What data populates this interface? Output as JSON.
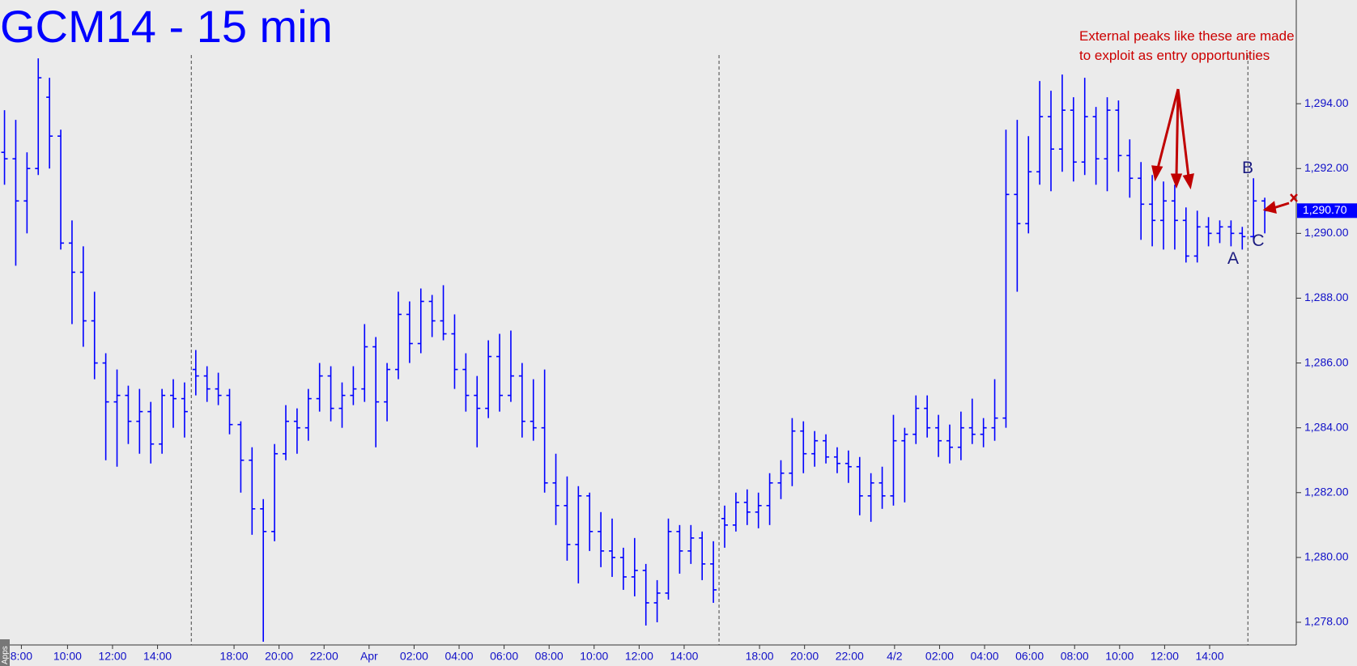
{
  "chart_data": {
    "type": "ohlc",
    "title": "GCM14 - 15 min",
    "color": "#0000ff",
    "x": [
      0,
      1,
      2,
      3,
      4,
      5,
      6,
      7,
      8,
      9,
      10,
      11,
      12,
      13,
      14,
      15,
      16,
      17,
      18,
      19,
      20,
      21,
      22,
      23,
      24,
      25,
      26,
      27,
      28,
      29,
      30,
      31,
      32,
      33,
      34,
      35,
      36,
      37,
      38,
      39,
      40,
      41,
      42,
      43,
      44,
      45,
      46,
      47,
      48,
      49,
      50,
      51,
      52,
      53,
      54,
      55,
      56,
      57,
      58,
      59,
      60,
      61,
      62,
      63,
      64,
      65,
      66,
      67,
      68,
      69,
      70,
      71,
      72,
      73,
      74,
      75,
      76,
      77,
      78,
      79,
      80,
      81,
      82,
      83,
      84,
      85,
      86,
      87,
      88,
      89,
      90,
      91,
      92,
      93,
      94,
      95,
      96,
      97,
      98,
      99,
      100,
      101,
      102,
      103,
      104,
      105,
      106,
      107,
      108,
      109,
      110,
      111,
      112
    ],
    "open": [
      1292.5,
      1292.3,
      1291.0,
      1292.0,
      1294.2,
      1293.0,
      1289.7,
      1288.8,
      1287.3,
      1286.0,
      1284.8,
      1285.0,
      1284.2,
      1284.5,
      1283.5,
      1285.0,
      1284.9,
      1285.8,
      1285.6,
      1285.2,
      1285.0,
      1284.1,
      1283.0,
      1281.5,
      1280.8,
      1283.2,
      1284.2,
      1284.0,
      1284.9,
      1285.6,
      1284.6,
      1285.0,
      1285.2,
      1286.5,
      1284.8,
      1285.8,
      1287.5,
      1286.6,
      1287.9,
      1287.3,
      1286.9,
      1285.8,
      1285.0,
      1284.6,
      1286.2,
      1285.0,
      1285.6,
      1284.2,
      1284.0,
      1282.3,
      1281.6,
      1280.4,
      1281.9,
      1280.8,
      1280.2,
      1280.0,
      1279.4,
      1279.6,
      1278.6,
      1278.9,
      1280.8,
      1280.2,
      1280.6,
      1279.8,
      1281.2,
      1281.0,
      1281.7,
      1281.4,
      1281.6,
      1282.3,
      1282.6,
      1283.9,
      1283.2,
      1283.6,
      1283.1,
      1282.9,
      1282.8,
      1281.9,
      1282.3,
      1281.9,
      1283.6,
      1283.8,
      1284.6,
      1284.0,
      1283.6,
      1283.4,
      1284.0,
      1283.8,
      1284.0,
      1284.3,
      1291.2,
      1290.3,
      1291.9,
      1293.6,
      1292.6,
      1293.8,
      1292.2,
      1293.6,
      1292.3,
      1293.8,
      1292.4,
      1291.7,
      1290.9,
      1290.4,
      1291.0,
      1290.4,
      1289.3,
      1290.2,
      1290.0,
      1290.2,
      1290.0,
      1289.9,
      1291.0
    ],
    "high": [
      1293.8,
      1293.5,
      1292.5,
      1295.4,
      1294.8,
      1293.2,
      1290.4,
      1289.6,
      1288.2,
      1286.3,
      1285.8,
      1285.3,
      1285.2,
      1284.8,
      1285.2,
      1285.5,
      1285.4,
      1286.4,
      1285.9,
      1285.7,
      1285.2,
      1284.2,
      1283.4,
      1281.8,
      1283.5,
      1284.7,
      1284.6,
      1285.2,
      1286.0,
      1285.9,
      1285.4,
      1285.9,
      1287.2,
      1286.8,
      1286.0,
      1288.2,
      1287.9,
      1288.3,
      1288.1,
      1288.4,
      1287.5,
      1286.3,
      1285.6,
      1286.7,
      1286.9,
      1287.0,
      1286.0,
      1285.5,
      1285.8,
      1283.2,
      1282.5,
      1282.2,
      1282.0,
      1281.4,
      1281.2,
      1280.3,
      1280.6,
      1279.8,
      1279.3,
      1281.2,
      1281.0,
      1281.0,
      1280.8,
      1280.5,
      1281.6,
      1282.0,
      1282.1,
      1282.0,
      1282.6,
      1283.0,
      1284.3,
      1284.2,
      1283.9,
      1283.8,
      1283.4,
      1283.3,
      1283.1,
      1282.6,
      1282.8,
      1284.4,
      1284.0,
      1285.0,
      1285.0,
      1284.4,
      1284.1,
      1284.5,
      1284.9,
      1284.3,
      1285.5,
      1293.2,
      1293.5,
      1293.0,
      1294.7,
      1294.4,
      1294.9,
      1294.2,
      1294.8,
      1293.9,
      1294.2,
      1294.1,
      1292.9,
      1292.2,
      1291.8,
      1291.6,
      1291.5,
      1290.8,
      1290.7,
      1290.5,
      1290.4,
      1290.4,
      1290.2,
      1291.7,
      1291.1
    ],
    "low": [
      1291.5,
      1289.0,
      1290.0,
      1291.8,
      1292.0,
      1289.5,
      1287.2,
      1286.5,
      1285.5,
      1283.0,
      1282.8,
      1283.5,
      1283.2,
      1282.9,
      1283.2,
      1284.0,
      1283.7,
      1285.0,
      1284.8,
      1284.7,
      1283.8,
      1282.0,
      1280.7,
      1277.4,
      1280.5,
      1283.0,
      1283.2,
      1283.6,
      1284.5,
      1284.2,
      1284.0,
      1284.7,
      1284.8,
      1283.4,
      1284.2,
      1285.5,
      1286.0,
      1286.3,
      1286.8,
      1286.7,
      1285.2,
      1284.5,
      1283.4,
      1284.3,
      1284.5,
      1284.8,
      1283.7,
      1283.6,
      1282.0,
      1281.0,
      1279.9,
      1279.2,
      1280.2,
      1279.7,
      1279.4,
      1279.0,
      1278.8,
      1277.9,
      1278.0,
      1278.7,
      1279.5,
      1279.8,
      1279.3,
      1278.6,
      1280.3,
      1280.8,
      1281.0,
      1280.9,
      1281.0,
      1281.8,
      1282.2,
      1282.6,
      1282.8,
      1282.9,
      1282.6,
      1282.3,
      1281.3,
      1281.1,
      1281.5,
      1281.6,
      1281.7,
      1283.5,
      1283.7,
      1283.1,
      1282.9,
      1283.0,
      1283.5,
      1283.4,
      1283.6,
      1284.0,
      1288.2,
      1290.0,
      1291.5,
      1291.3,
      1291.9,
      1291.6,
      1291.8,
      1291.5,
      1291.3,
      1291.9,
      1291.1,
      1289.8,
      1289.6,
      1289.5,
      1289.5,
      1289.1,
      1289.1,
      1289.6,
      1289.7,
      1289.6,
      1289.5,
      1289.8,
      1290.0
    ],
    "close": [
      1292.3,
      1291.0,
      1292.0,
      1294.8,
      1293.0,
      1289.7,
      1288.8,
      1287.3,
      1286.0,
      1284.8,
      1285.0,
      1284.2,
      1284.5,
      1283.5,
      1285.0,
      1284.9,
      1284.5,
      1285.6,
      1285.2,
      1285.0,
      1284.1,
      1283.0,
      1281.5,
      1280.8,
      1283.2,
      1284.2,
      1284.0,
      1284.9,
      1285.6,
      1284.6,
      1285.0,
      1285.2,
      1286.5,
      1284.8,
      1285.8,
      1287.5,
      1286.6,
      1287.9,
      1287.3,
      1286.9,
      1285.8,
      1285.0,
      1284.6,
      1286.2,
      1285.0,
      1285.6,
      1284.2,
      1284.0,
      1282.3,
      1281.6,
      1280.4,
      1281.9,
      1280.8,
      1280.2,
      1280.0,
      1279.4,
      1279.6,
      1278.6,
      1278.9,
      1280.8,
      1280.2,
      1280.6,
      1279.8,
      1279.0,
      1281.0,
      1281.7,
      1281.4,
      1281.6,
      1282.3,
      1282.6,
      1283.9,
      1283.2,
      1283.6,
      1283.1,
      1282.9,
      1282.8,
      1281.9,
      1282.3,
      1281.9,
      1283.6,
      1283.8,
      1284.6,
      1284.0,
      1283.6,
      1283.4,
      1284.0,
      1283.8,
      1284.0,
      1284.3,
      1291.2,
      1290.3,
      1291.9,
      1293.6,
      1292.6,
      1293.8,
      1292.2,
      1293.6,
      1292.3,
      1293.8,
      1292.4,
      1291.7,
      1290.9,
      1290.4,
      1291.0,
      1290.4,
      1289.3,
      1290.2,
      1290.0,
      1290.2,
      1290.0,
      1289.9,
      1291.0,
      1290.7
    ],
    "xlim": [
      -0.4,
      114.8
    ],
    "ylim": [
      1277.3,
      1297.2
    ],
    "xticks": [
      {
        "value": 1.5,
        "label": "8:00"
      },
      {
        "value": 5.6,
        "label": "10:00"
      },
      {
        "value": 9.6,
        "label": "12:00"
      },
      {
        "value": 13.6,
        "label": "14:00"
      },
      {
        "value": 20.4,
        "label": "18:00"
      },
      {
        "value": 24.4,
        "label": "20:00"
      },
      {
        "value": 28.4,
        "label": "22:00"
      },
      {
        "value": 32.4,
        "label": "Apr"
      },
      {
        "value": 36.4,
        "label": "02:00"
      },
      {
        "value": 40.4,
        "label": "04:00"
      },
      {
        "value": 44.4,
        "label": "06:00"
      },
      {
        "value": 48.4,
        "label": "08:00"
      },
      {
        "value": 52.4,
        "label": "10:00"
      },
      {
        "value": 56.4,
        "label": "12:00"
      },
      {
        "value": 60.4,
        "label": "14:00"
      },
      {
        "value": 67.1,
        "label": "18:00"
      },
      {
        "value": 71.1,
        "label": "20:00"
      },
      {
        "value": 75.1,
        "label": "22:00"
      },
      {
        "value": 79.1,
        "label": "4/2"
      },
      {
        "value": 83.1,
        "label": "02:00"
      },
      {
        "value": 87.1,
        "label": "04:00"
      },
      {
        "value": 91.1,
        "label": "06:00"
      },
      {
        "value": 95.1,
        "label": "08:00"
      },
      {
        "value": 99.1,
        "label": "10:00"
      },
      {
        "value": 103.1,
        "label": "12:00"
      },
      {
        "value": 107.1,
        "label": "14:00"
      }
    ],
    "yticks": [
      {
        "value": 1278,
        "label": "1,278.00"
      },
      {
        "value": 1280,
        "label": "1,280.00"
      },
      {
        "value": 1282,
        "label": "1,282.00"
      },
      {
        "value": 1284,
        "label": "1,284.00"
      },
      {
        "value": 1286,
        "label": "1,286.00"
      },
      {
        "value": 1288,
        "label": "1,288.00"
      },
      {
        "value": 1290,
        "label": "1,290.00"
      },
      {
        "value": 1292,
        "label": "1,292.00"
      },
      {
        "value": 1294,
        "label": "1,294.00"
      }
    ],
    "session_breaks": [
      16.6,
      63.5,
      110.5
    ],
    "last_price": {
      "value": 1290.7,
      "label": "1,290.70"
    },
    "note_lines": [
      "External peaks like these are made",
      "to exploit as entry opportunities"
    ],
    "points": [
      "A",
      "B",
      "C"
    ],
    "apps_tab": "Apps"
  }
}
